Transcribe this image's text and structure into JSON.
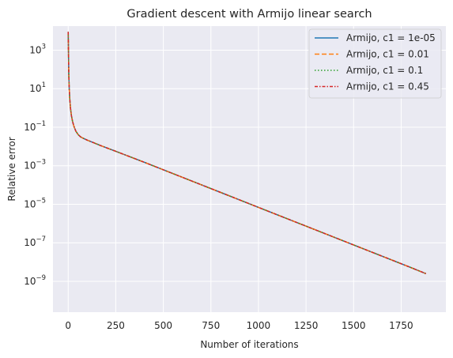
{
  "chart_data": {
    "type": "line",
    "title": "Gradient descent with Armijo linear search",
    "xlabel": "Number of iterations",
    "ylabel": "Relative error",
    "xscale": "linear",
    "yscale": "log",
    "xlim": [
      -80,
      1985
    ],
    "ylim_log10": [
      -10.6,
      4.25
    ],
    "x_ticks": [
      0,
      250,
      500,
      750,
      1000,
      1250,
      1500,
      1750
    ],
    "x_tick_labels": [
      "0",
      "250",
      "500",
      "750",
      "1000",
      "1250",
      "1500",
      "1750"
    ],
    "y_ticks_log10": [
      -9,
      -7,
      -5,
      -3,
      -1,
      1,
      3
    ],
    "y_tick_labels": [
      {
        "base": "10",
        "exp": "−9"
      },
      {
        "base": "10",
        "exp": "−7"
      },
      {
        "base": "10",
        "exp": "−5"
      },
      {
        "base": "10",
        "exp": "−3"
      },
      {
        "base": "10",
        "exp": "−1"
      },
      {
        "base": "10",
        "exp": "1"
      },
      {
        "base": "10",
        "exp": "3"
      }
    ],
    "grid": true,
    "legend_position": "top-right",
    "series": [
      {
        "name": "Armijo, c1 = 1e-05",
        "color": "#1f77b4",
        "style": "solid"
      },
      {
        "name": "Armijo, c1 = 0.01",
        "color": "#ff7f0e",
        "style": "dashed"
      },
      {
        "name": "Armijo, c1 = 0.1",
        "color": "#2ca02c",
        "style": "dotted"
      },
      {
        "name": "Armijo, c1 = 0.45",
        "color": "#d62728",
        "style": "dashdot"
      }
    ],
    "curve": {
      "x": [
        0,
        1,
        2,
        3,
        5,
        8,
        12,
        17,
        23,
        30,
        40,
        52,
        65,
        80,
        100,
        130,
        170,
        250,
        400,
        600,
        800,
        1000,
        1200,
        1400,
        1600,
        1800,
        1880
      ],
      "y_log10": [
        3.95,
        3.3,
        2.5,
        1.8,
        1.1,
        0.5,
        0.0,
        -0.4,
        -0.7,
        -0.95,
        -1.2,
        -1.38,
        -1.5,
        -1.58,
        -1.67,
        -1.79,
        -1.95,
        -2.25,
        -2.82,
        -3.6,
        -4.38,
        -5.16,
        -5.94,
        -6.72,
        -7.5,
        -8.28,
        -8.6
      ]
    }
  }
}
